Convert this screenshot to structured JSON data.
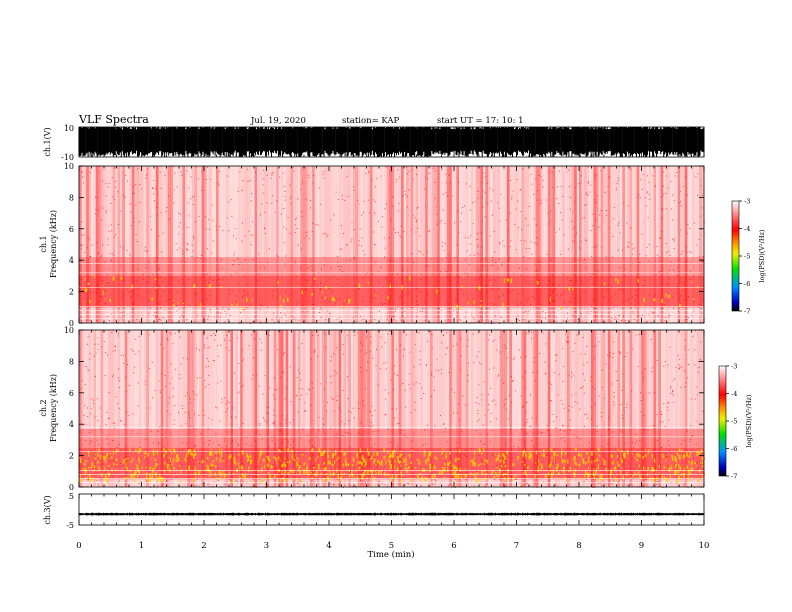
{
  "header": {
    "title": "VLF Spectra",
    "date": "Jul. 19, 2020",
    "station": "station= KAP",
    "start": "start UT =   17: 10: 1"
  },
  "chart_data": [
    {
      "type": "line",
      "panel": "ch1-waveform",
      "ylabel": "ch.1(V)",
      "ylim": [
        -10,
        10
      ],
      "ytick_labels": [
        "10",
        "-10"
      ],
      "note": "dense waveform mostly saturated between -10 and 10 V"
    },
    {
      "type": "heatmap",
      "panel": "ch1-spectrogram",
      "ylabel_channel": "ch.1",
      "ylabel": "Frequency (kHz)",
      "ylim": [
        0,
        10
      ],
      "ytick_labels": [
        "0",
        "2",
        "4",
        "6",
        "8",
        "10"
      ],
      "xlim": [
        0,
        10
      ],
      "colorbar": {
        "label": "log(PSD)(V²/Hz)",
        "range": [
          -7,
          -3
        ],
        "tick_labels": [
          "-3",
          "-4",
          "-5",
          "-6",
          "-7"
        ]
      },
      "band_kHz": [
        1,
        3
      ],
      "band_level": -4
    },
    {
      "type": "heatmap",
      "panel": "ch2-spectrogram",
      "ylabel_channel": "ch.2",
      "ylabel": "Frequency (kHz)",
      "ylim": [
        0,
        10
      ],
      "ytick_labels": [
        "0",
        "2",
        "4",
        "6",
        "8",
        "10"
      ],
      "xlim": [
        0,
        10
      ],
      "colorbar": {
        "label": "log(PSD)(V²/Hz)",
        "range": [
          -7,
          -3
        ],
        "tick_labels": [
          "-3",
          "-4",
          "-5",
          "-6",
          "-7"
        ]
      },
      "band_kHz": [
        0.5,
        2.5
      ],
      "band_level": -3.8
    },
    {
      "type": "line",
      "panel": "ch3-waveform",
      "ylabel": "ch.3(V)",
      "ylim": [
        -5,
        5
      ],
      "ytick_labels": [
        "5",
        "-5"
      ],
      "level": -1.5
    }
  ],
  "xaxis": {
    "label": "Time (min)",
    "range": [
      0,
      10
    ],
    "tick_labels": [
      "0",
      "1",
      "2",
      "3",
      "4",
      "5",
      "6",
      "7",
      "8",
      "9",
      "10"
    ]
  },
  "colors": {
    "spectrum_red": "#ff0000",
    "spectrum_yellow": "#ffd000",
    "waveform": "#000000"
  }
}
